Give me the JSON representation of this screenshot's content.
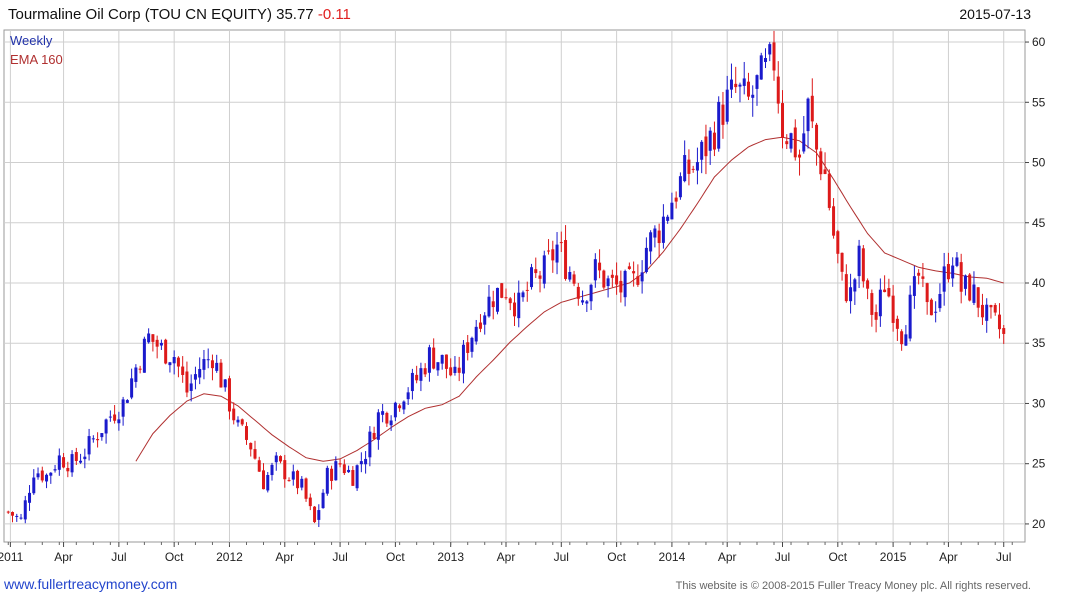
{
  "header": {
    "name": "Tourmaline Oil Corp (TOU CN EQUITY)",
    "price": "35.77",
    "change": "-0.11",
    "date": "2015-07-13"
  },
  "footer": {
    "link": "www.fullertreacymoney.com",
    "copyright": "This website is © 2008-2015 Fuller Treacy Money plc. All rights reserved."
  },
  "colors": {
    "up": "#1a1acc",
    "down": "#dd1a1a",
    "ema": "#b03030",
    "grid": "#cfcfcf"
  },
  "chart_data": {
    "type": "candlestick",
    "title": "Tourmaline Oil Corp (TOU CN EQUITY) 35.77 -0.11",
    "legend": [
      "Weekly",
      "EMA 160"
    ],
    "x_tick_labels": [
      "2011",
      "Apr",
      "Jul",
      "Oct",
      "2012",
      "Apr",
      "Jul",
      "Oct",
      "2013",
      "Apr",
      "Jul",
      "Oct",
      "2014",
      "Apr",
      "Jul",
      "Oct",
      "2015",
      "Apr",
      "Jul"
    ],
    "x_tick_positions": [
      0.5,
      13,
      26,
      39,
      52,
      65,
      78,
      91,
      104,
      117,
      130,
      143,
      156,
      169,
      182,
      195,
      208,
      221,
      234
    ],
    "y_ticks": [
      20,
      25,
      30,
      35,
      40,
      45,
      50,
      55,
      60
    ],
    "ylim": [
      18.5,
      61
    ],
    "xlim": [
      -1,
      239
    ],
    "weekly_close_anchors": [
      [
        0,
        21.0
      ],
      [
        3,
        20.3
      ],
      [
        6,
        24.5
      ],
      [
        9,
        24.0
      ],
      [
        12,
        25.5
      ],
      [
        15,
        25.0
      ],
      [
        18,
        26.0
      ],
      [
        21,
        27.5
      ],
      [
        24,
        29.0
      ],
      [
        27,
        30.0
      ],
      [
        30,
        33.0
      ],
      [
        33,
        35.5
      ],
      [
        36,
        34.5
      ],
      [
        39,
        34.0
      ],
      [
        42,
        31.0
      ],
      [
        45,
        33.0
      ],
      [
        48,
        34.0
      ],
      [
        51,
        31.0
      ],
      [
        54,
        28.0
      ],
      [
        57,
        26.5
      ],
      [
        60,
        23.5
      ],
      [
        63,
        25.0
      ],
      [
        66,
        24.0
      ],
      [
        69,
        23.0
      ],
      [
        72,
        20.0
      ],
      [
        75,
        24.0
      ],
      [
        78,
        25.0
      ],
      [
        81,
        24.0
      ],
      [
        84,
        26.0
      ],
      [
        87,
        29.0
      ],
      [
        90,
        29.5
      ],
      [
        93,
        31.0
      ],
      [
        96,
        32.0
      ],
      [
        99,
        34.0
      ],
      [
        102,
        33.5
      ],
      [
        105,
        32.0
      ],
      [
        108,
        35.0
      ],
      [
        111,
        37.5
      ],
      [
        114,
        39.0
      ],
      [
        117,
        39.5
      ],
      [
        120,
        38.0
      ],
      [
        123,
        40.0
      ],
      [
        126,
        41.0
      ],
      [
        129,
        43.0
      ],
      [
        132,
        41.0
      ],
      [
        135,
        39.0
      ],
      [
        138,
        41.0
      ],
      [
        141,
        40.0
      ],
      [
        144,
        39.5
      ],
      [
        147,
        40.0
      ],
      [
        150,
        43.0
      ],
      [
        153,
        44.5
      ],
      [
        156,
        47.0
      ],
      [
        159,
        49.0
      ],
      [
        162,
        50.0
      ],
      [
        165,
        52.0
      ],
      [
        168,
        54.5
      ],
      [
        171,
        56.0
      ],
      [
        174,
        55.0
      ],
      [
        177,
        57.0
      ],
      [
        180,
        58.5
      ],
      [
        182,
        53.0
      ],
      [
        184,
        52.0
      ],
      [
        186,
        50.5
      ],
      [
        188,
        54.5
      ],
      [
        190,
        51.0
      ],
      [
        192,
        49.0
      ],
      [
        194,
        44.0
      ],
      [
        196,
        40.0
      ],
      [
        198,
        39.0
      ],
      [
        200,
        42.0
      ],
      [
        202,
        38.5
      ],
      [
        204,
        37.0
      ],
      [
        206,
        40.0
      ],
      [
        208,
        38.0
      ],
      [
        210,
        36.0
      ],
      [
        212,
        38.0
      ],
      [
        214,
        40.5
      ],
      [
        216,
        37.5
      ],
      [
        218,
        38.5
      ],
      [
        220,
        40.5
      ],
      [
        222,
        42.5
      ],
      [
        224,
        39.5
      ],
      [
        226,
        39.5
      ],
      [
        228,
        38.5
      ],
      [
        230,
        37.0
      ],
      [
        232,
        36.5
      ],
      [
        234,
        35.77
      ]
    ],
    "ema160_anchors": [
      [
        30,
        25.2
      ],
      [
        34,
        27.5
      ],
      [
        38,
        29.0
      ],
      [
        42,
        30.2
      ],
      [
        46,
        30.8
      ],
      [
        50,
        30.6
      ],
      [
        54,
        29.8
      ],
      [
        58,
        28.6
      ],
      [
        62,
        27.4
      ],
      [
        66,
        26.4
      ],
      [
        70,
        25.5
      ],
      [
        74,
        25.2
      ],
      [
        78,
        25.4
      ],
      [
        82,
        26.1
      ],
      [
        86,
        27.0
      ],
      [
        90,
        28.0
      ],
      [
        94,
        28.9
      ],
      [
        98,
        29.6
      ],
      [
        102,
        29.9
      ],
      [
        106,
        30.6
      ],
      [
        110,
        32.2
      ],
      [
        114,
        33.6
      ],
      [
        118,
        35.1
      ],
      [
        122,
        36.4
      ],
      [
        126,
        37.6
      ],
      [
        130,
        38.4
      ],
      [
        134,
        38.8
      ],
      [
        138,
        39.2
      ],
      [
        142,
        39.6
      ],
      [
        146,
        40.0
      ],
      [
        150,
        41.0
      ],
      [
        154,
        42.6
      ],
      [
        158,
        44.5
      ],
      [
        162,
        46.6
      ],
      [
        166,
        48.8
      ],
      [
        170,
        50.2
      ],
      [
        174,
        51.3
      ],
      [
        178,
        51.9
      ],
      [
        182,
        52.1
      ],
      [
        186,
        51.8
      ],
      [
        190,
        50.8
      ],
      [
        194,
        48.6
      ],
      [
        198,
        46.3
      ],
      [
        202,
        44.1
      ],
      [
        206,
        42.5
      ],
      [
        210,
        41.9
      ],
      [
        214,
        41.3
      ],
      [
        218,
        41.0
      ],
      [
        222,
        40.8
      ],
      [
        226,
        40.5
      ],
      [
        230,
        40.4
      ],
      [
        234,
        40.0
      ]
    ]
  }
}
